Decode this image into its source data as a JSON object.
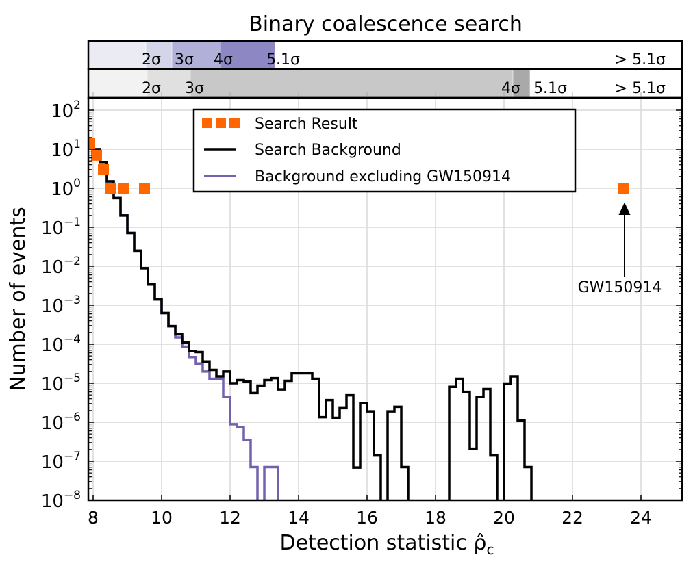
{
  "chart_data": {
    "type": "step-histogram",
    "title": "Binary coalescence search",
    "xlabel": "Detection statistic ρ̂",
    "xlabel_sub": "c",
    "ylabel": "Number of events",
    "xlim": [
      7.86,
      25.2
    ],
    "ylim": [
      1e-08,
      190
    ],
    "yscale": "log",
    "grid": true,
    "x_ticks": [
      "8",
      "10",
      "12",
      "14",
      "16",
      "18",
      "20",
      "22",
      "24"
    ],
    "y_ticks": [
      {
        "base": "10",
        "exp": "2"
      },
      {
        "base": "10",
        "exp": "1"
      },
      {
        "base": "10",
        "exp": "0"
      },
      {
        "base": "10",
        "exp": "−1"
      },
      {
        "base": "10",
        "exp": "−2"
      },
      {
        "base": "10",
        "exp": "−3"
      },
      {
        "base": "10",
        "exp": "−4"
      },
      {
        "base": "10",
        "exp": "−5"
      },
      {
        "base": "10",
        "exp": "−6"
      },
      {
        "base": "10",
        "exp": "−7"
      },
      {
        "base": "10",
        "exp": "−8"
      }
    ],
    "legend": {
      "placement": "top-center",
      "entries": [
        "Search Result",
        "Search Background",
        "Background excluding GW150914"
      ]
    },
    "colors": {
      "search_result": "#ff6600",
      "background": "#000000",
      "background_excl": "#7460ae"
    },
    "search_result": {
      "x": [
        7.9,
        8.1,
        8.3,
        8.5,
        8.9,
        9.5,
        23.5
      ],
      "y": [
        14,
        7,
        3,
        1,
        1,
        1,
        1
      ]
    },
    "bin_start": 8.0,
    "bin_width": 0.2,
    "background": [
      10,
      4.7,
      1.5,
      0.56,
      0.2,
      0.071,
      0.025,
      0.0089,
      0.0034,
      0.0014,
      0.00063,
      0.00029,
      0.00018,
      0.00011,
      6.6e-05,
      6.3e-05,
      3.6e-05,
      2.2e-05,
      1.5e-05,
      2e-05,
      1e-05,
      1.2e-05,
      1.1e-05,
      5.6e-06,
      8.7e-06,
      1.2e-05,
      1.35e-05,
      6.9e-06,
      1.15e-05,
      1.8e-05,
      1.8e-05,
      1.8e-05,
      1.3e-05,
      1.35e-06,
      3.7e-06,
      1.3e-06,
      2.3e-06,
      4.9e-06,
      6.9e-08,
      3.1e-06,
      1.9e-06,
      1.4e-07,
      0,
      1.9e-06,
      2.5e-06,
      7.1e-08,
      0,
      0,
      0,
      0,
      0,
      0,
      8.1e-06,
      1.3e-05,
      6e-06,
      2.1e-07,
      4.5e-06,
      7.1e-06,
      1.4e-07,
      0,
      9.8e-06,
      1.5e-05,
      1.1e-06,
      7.1e-08,
      0
    ],
    "background_excluding": [
      10,
      4.7,
      1.5,
      0.56,
      0.2,
      0.071,
      0.025,
      0.0089,
      0.0034,
      0.0014,
      0.00063,
      0.00029,
      0.00015,
      8.7e-05,
      4.7e-05,
      3.2e-05,
      2e-05,
      1.3e-05,
      1.3e-05,
      4.5e-06,
      8.9e-07,
      7.6e-07,
      3.5e-07,
      7.1e-08,
      0,
      7.1e-08,
      7.1e-08,
      0
    ],
    "annotation": {
      "text": "GW150914",
      "x": 23.5,
      "y": 1
    },
    "significance_bands": {
      "upper": {
        "boundaries": [
          9.54,
          10.3,
          11.72,
          13.32
        ],
        "labels": [
          "2σ",
          "3σ",
          "4σ",
          "5.1σ",
          "> 5.1σ"
        ],
        "colors": [
          "#ebebf4",
          "#d5d5ea",
          "#b1b0d8",
          "#8d88c3",
          "#ffffff"
        ]
      },
      "lower": {
        "boundaries": [
          9.58,
          10.84,
          20.26,
          20.76
        ],
        "labels": [
          "2σ",
          "3σ",
          "4σ",
          "5.1σ",
          "> 5.1σ"
        ],
        "colors": [
          "#f2f2f2",
          "#e0e0e0",
          "#c8c8c8",
          "#a9a9a9",
          "#ffffff"
        ]
      }
    }
  }
}
